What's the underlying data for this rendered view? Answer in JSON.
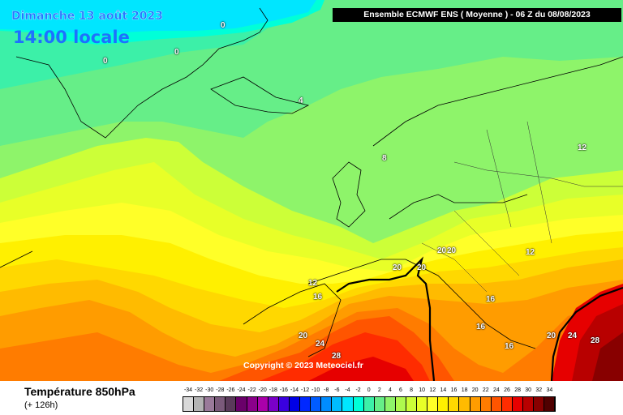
{
  "header": {
    "date_label": "Dimanche 13 août 2023",
    "time_label": "14:00 locale",
    "run_label": "Ensemble ECMWF ENS  ( Moyenne )  -  06 Z du 08/08/2023"
  },
  "map": {
    "copyright": "Copyright © 2023 Meteociel.fr",
    "isotherm_labels": [
      {
        "id": "iso-0-a",
        "text": "0"
      },
      {
        "id": "iso-0-b",
        "text": "0"
      },
      {
        "id": "iso-0-c",
        "text": "0"
      },
      {
        "id": "iso-4",
        "text": "4"
      },
      {
        "id": "iso-8",
        "text": "8"
      },
      {
        "id": "iso-12-east",
        "text": "12"
      },
      {
        "id": "iso-12-balkan",
        "text": "12"
      },
      {
        "id": "iso-12-biscay",
        "text": "12"
      },
      {
        "id": "iso-16-biscay",
        "text": "16"
      },
      {
        "id": "iso-16-adriatic",
        "text": "16"
      },
      {
        "id": "iso-16-ionian",
        "text": "16"
      },
      {
        "id": "iso-16-med",
        "text": "16"
      },
      {
        "id": "iso-20-alps-a",
        "text": "20"
      },
      {
        "id": "iso-20-alps-b",
        "text": "20"
      },
      {
        "id": "iso-20-pyrenees",
        "text": "20"
      },
      {
        "id": "iso-20-france",
        "text": "20"
      },
      {
        "id": "iso-20-atlantic",
        "text": "20"
      },
      {
        "id": "iso-20-anatolia",
        "text": "20"
      },
      {
        "id": "iso-24-iberia",
        "text": "24"
      },
      {
        "id": "iso-24-anatolia",
        "text": "24"
      },
      {
        "id": "iso-28-africa",
        "text": "28"
      },
      {
        "id": "iso-28-east",
        "text": "28"
      }
    ]
  },
  "legend": {
    "param_name": "Température 850hPa",
    "param_sub": "(+ 126h)",
    "ticks": [
      "-34",
      "-32",
      "-30",
      "-28",
      "-26",
      "-24",
      "-22",
      "-20",
      "-18",
      "-16",
      "-14",
      "-12",
      "-10",
      "-8",
      "-6",
      "-4",
      "-2",
      "0",
      "2",
      "4",
      "6",
      "8",
      "10",
      "12",
      "14",
      "16",
      "18",
      "20",
      "22",
      "24",
      "26",
      "28",
      "30",
      "32",
      "34"
    ],
    "colors": [
      "#d9d9d9",
      "#b4b4b4",
      "#9a7a9a",
      "#7a5a7a",
      "#5a3a5a",
      "#6a006a",
      "#8a008a",
      "#aa00aa",
      "#7a00c8",
      "#3a00e0",
      "#0000e6",
      "#0028ff",
      "#005cff",
      "#008cff",
      "#00bcff",
      "#00e6ff",
      "#00ffd8",
      "#3cf0a8",
      "#66ee88",
      "#8ef46a",
      "#aefa4e",
      "#ccff38",
      "#e8ff28",
      "#ffff28",
      "#fff000",
      "#ffd800",
      "#ffbb00",
      "#ff9c00",
      "#ff7c00",
      "#ff5500",
      "#ff2c00",
      "#e60000",
      "#b80000",
      "#880000",
      "#500000"
    ]
  }
}
